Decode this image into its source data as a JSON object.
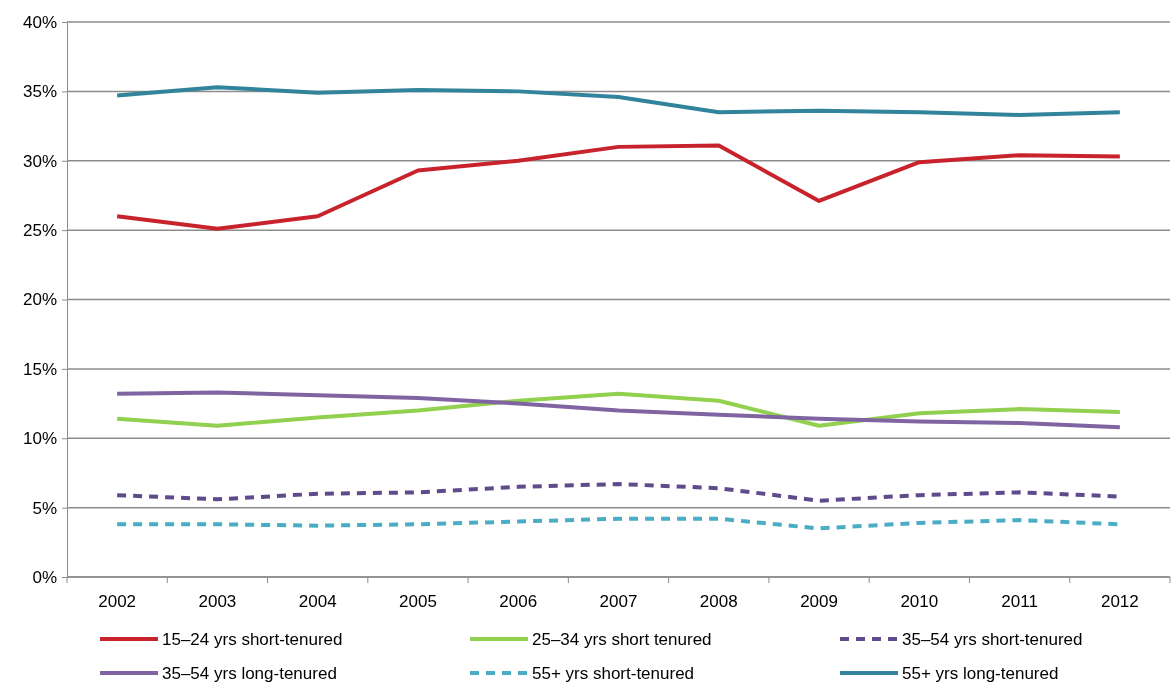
{
  "chart_data": {
    "type": "line",
    "categories": [
      "2002",
      "2003",
      "2004",
      "2005",
      "2006",
      "2007",
      "2008",
      "2009",
      "2010",
      "2011",
      "2012"
    ],
    "ylim": [
      0,
      0.4
    ],
    "yticks": [
      {
        "value": 0,
        "label": "0%"
      },
      {
        "value": 0.05,
        "label": "5%"
      },
      {
        "value": 0.1,
        "label": "10%"
      },
      {
        "value": 0.15,
        "label": "15%"
      },
      {
        "value": 0.2,
        "label": "20%"
      },
      {
        "value": 0.25,
        "label": "25%"
      },
      {
        "value": 0.3,
        "label": "30%"
      },
      {
        "value": 0.35,
        "label": "35%"
      },
      {
        "value": 0.4,
        "label": "40%"
      }
    ],
    "grid": "y",
    "legend": "bottom",
    "marker": "none",
    "series": [
      {
        "name": "15–24 yrs short-tenured",
        "color": "#c8232c",
        "line_style": "solid",
        "values": [
          0.26,
          0.251,
          0.26,
          0.293,
          0.3,
          0.31,
          0.311,
          0.271,
          0.299,
          0.304,
          0.303
        ]
      },
      {
        "name": "25–34 yrs short tenured",
        "color": "#92d050",
        "line_style": "solid",
        "values": [
          0.114,
          0.109,
          0.115,
          0.12,
          0.127,
          0.132,
          0.127,
          0.109,
          0.118,
          0.121,
          0.119
        ]
      },
      {
        "name": "35–54 yrs short-tenured",
        "color": "#5f4b8b",
        "line_style": "dashed",
        "values": [
          0.059,
          0.056,
          0.06,
          0.061,
          0.065,
          0.067,
          0.064,
          0.055,
          0.059,
          0.061,
          0.058
        ]
      },
      {
        "name": "35–54 yrs long-tenured",
        "color": "#8064a2",
        "line_style": "solid",
        "values": [
          0.132,
          0.133,
          0.131,
          0.129,
          0.125,
          0.12,
          0.117,
          0.114,
          0.112,
          0.111,
          0.108
        ]
      },
      {
        "name": "55+ yrs short-tenured",
        "color": "#4bacc6",
        "line_style": "dashed",
        "values": [
          0.038,
          0.038,
          0.037,
          0.038,
          0.04,
          0.042,
          0.042,
          0.035,
          0.039,
          0.041,
          0.038
        ]
      },
      {
        "name": "55+ yrs long-tenured",
        "color": "#31849b",
        "line_style": "solid",
        "values": [
          0.347,
          0.353,
          0.349,
          0.351,
          0.35,
          0.346,
          0.335,
          0.336,
          0.335,
          0.333,
          0.335
        ]
      }
    ]
  }
}
